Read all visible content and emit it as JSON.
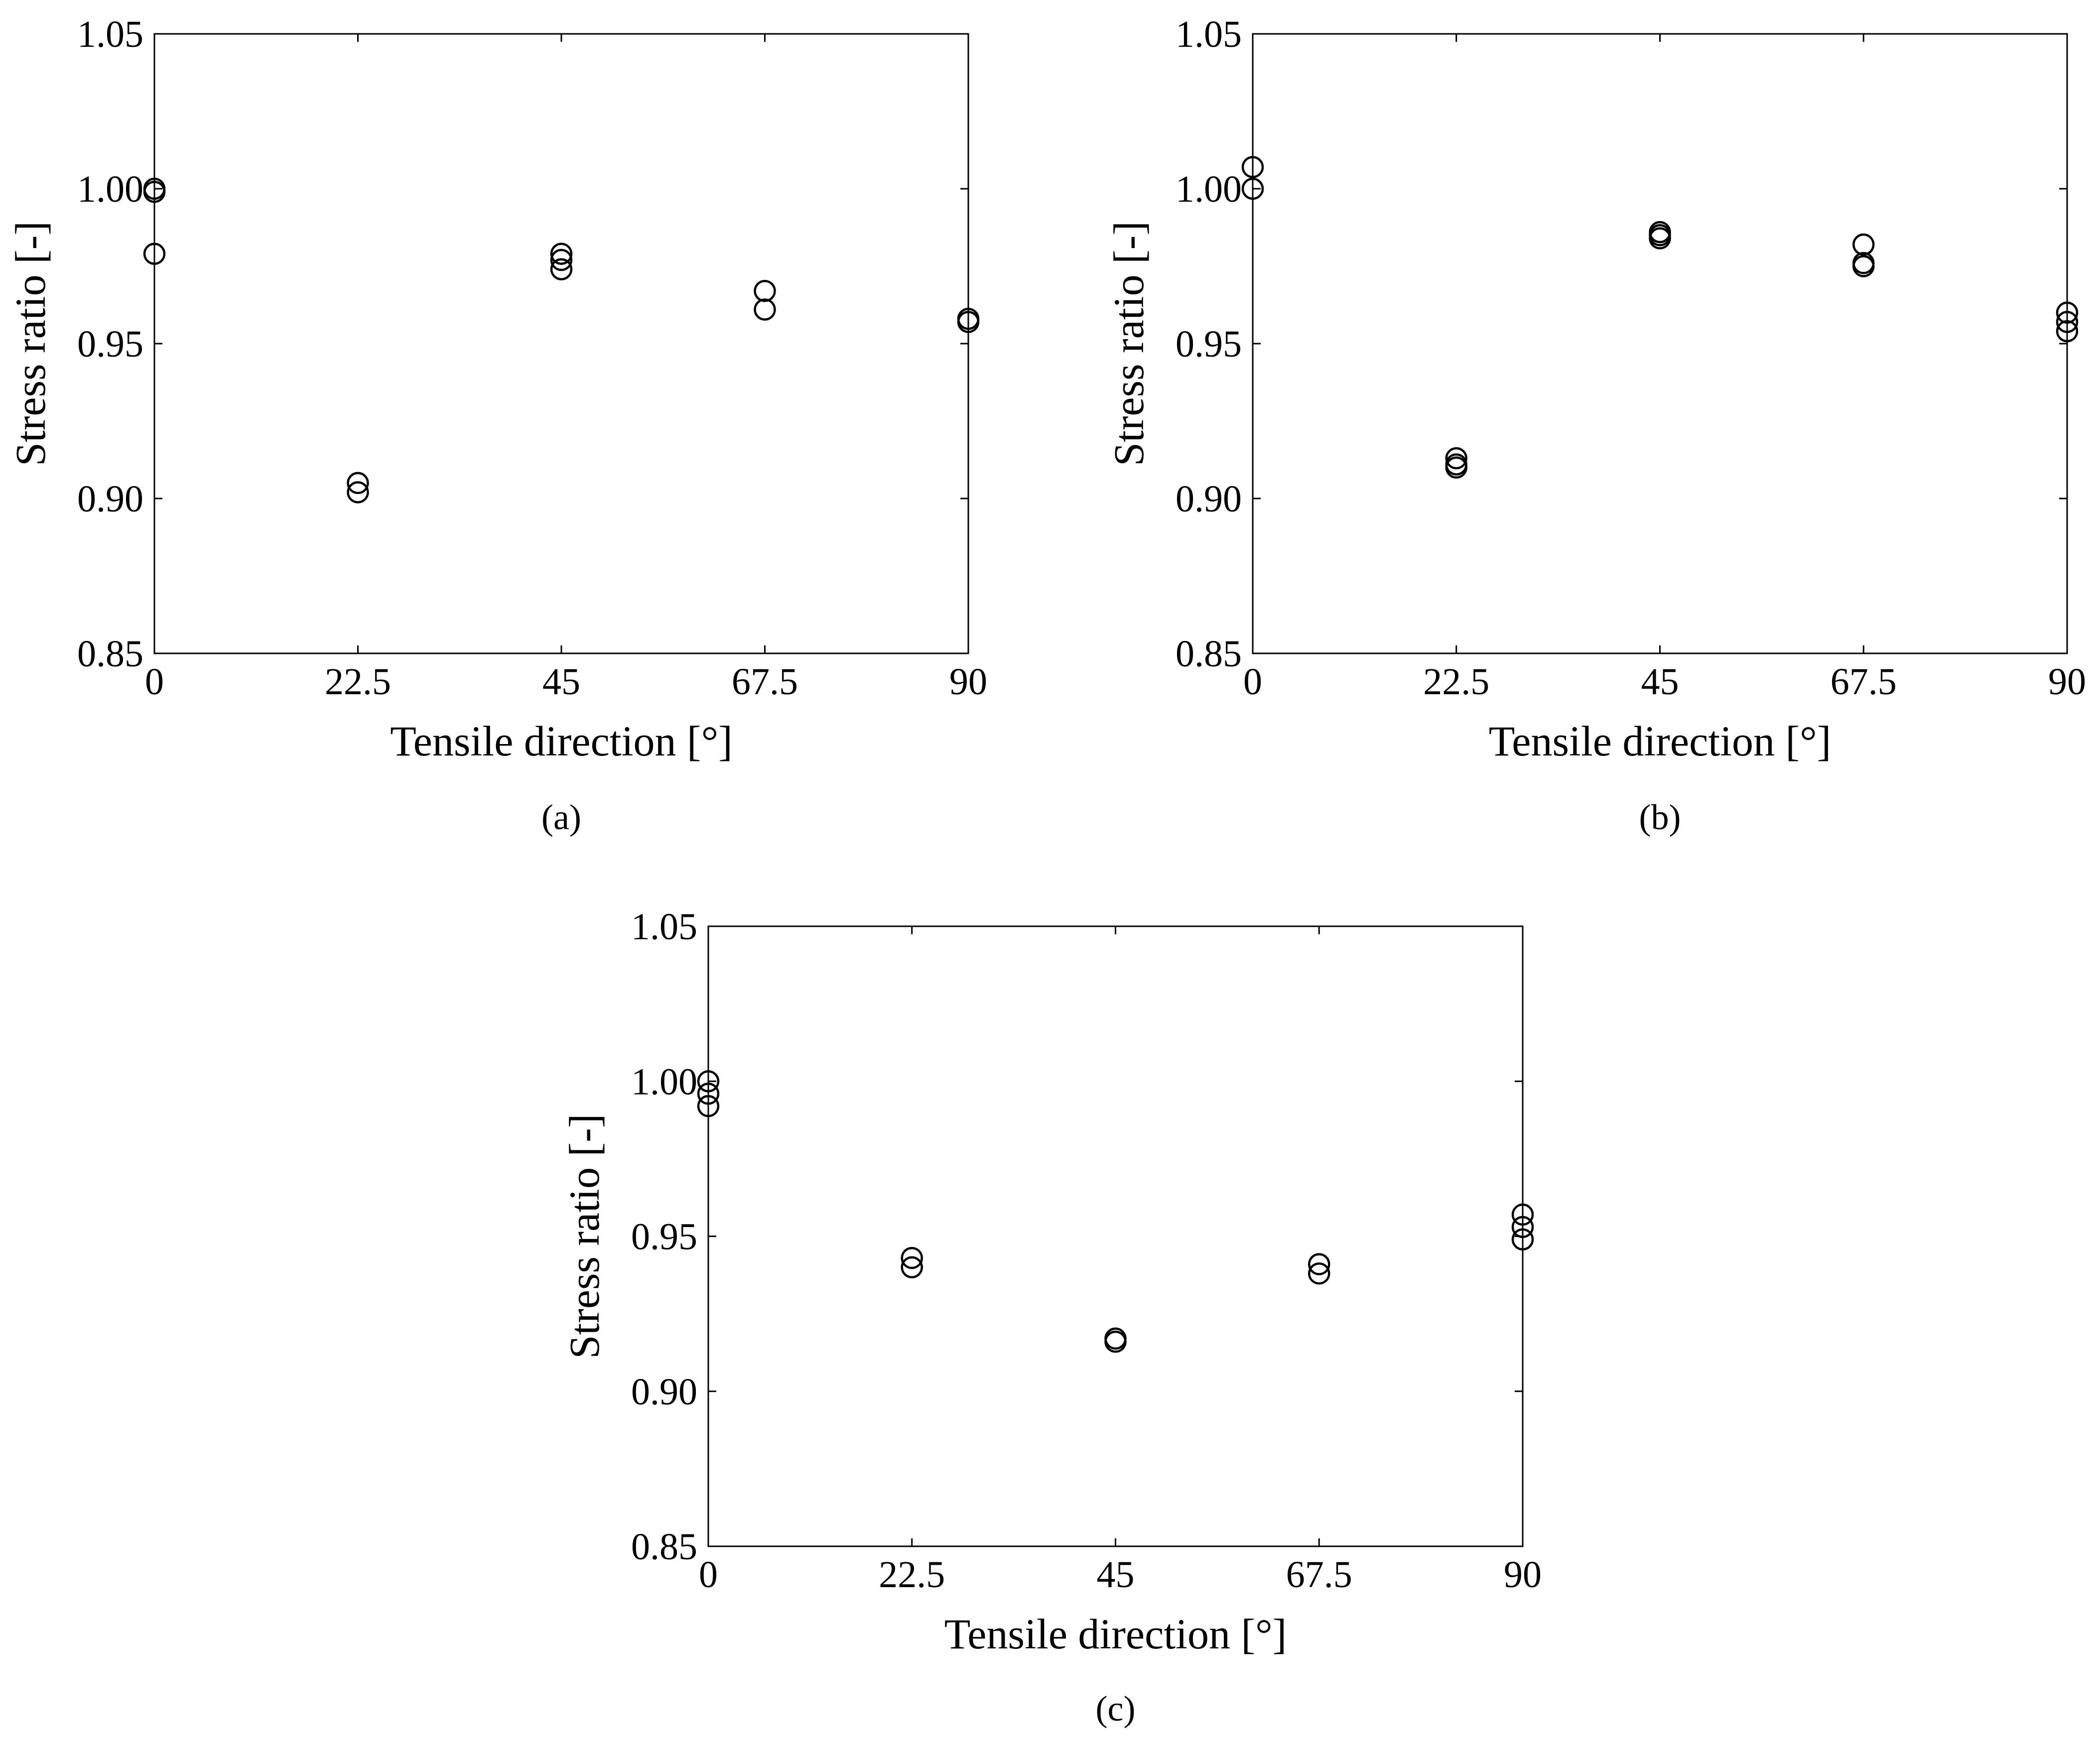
{
  "chart_data": [
    {
      "type": "scatter",
      "panel_label": "(a)",
      "xlabel": "Tensile direction [°]",
      "ylabel": "Stress ratio [-]",
      "xlim": [
        0,
        90
      ],
      "ylim": [
        0.85,
        1.05
      ],
      "xticks": [
        "0",
        "22.5",
        "45",
        "67.5",
        "90"
      ],
      "yticks": [
        "0.85",
        "0.90",
        "0.95",
        "1.00",
        "1.05"
      ],
      "marker": "open circle",
      "color": "#000000",
      "grid": false,
      "points": [
        {
          "x": 0,
          "y": 1.0
        },
        {
          "x": 0,
          "y": 0.999
        },
        {
          "x": 0,
          "y": 0.979
        },
        {
          "x": 22.5,
          "y": 0.905
        },
        {
          "x": 22.5,
          "y": 0.902
        },
        {
          "x": 45,
          "y": 0.979
        },
        {
          "x": 45,
          "y": 0.977
        },
        {
          "x": 45,
          "y": 0.974
        },
        {
          "x": 67.5,
          "y": 0.967
        },
        {
          "x": 67.5,
          "y": 0.961
        },
        {
          "x": 90,
          "y": 0.958
        },
        {
          "x": 90,
          "y": 0.957
        }
      ]
    },
    {
      "type": "scatter",
      "panel_label": "(b)",
      "xlabel": "Tensile direction [°]",
      "ylabel": "Stress ratio [-]",
      "xlim": [
        0,
        90
      ],
      "ylim": [
        0.85,
        1.05
      ],
      "xticks": [
        "0",
        "22.5",
        "45",
        "67.5",
        "90"
      ],
      "yticks": [
        "0.85",
        "0.90",
        "0.95",
        "1.00",
        "1.05"
      ],
      "marker": "open circle",
      "color": "#000000",
      "grid": false,
      "points": [
        {
          "x": 0,
          "y": 1.007
        },
        {
          "x": 0,
          "y": 1.0
        },
        {
          "x": 22.5,
          "y": 0.913
        },
        {
          "x": 22.5,
          "y": 0.911
        },
        {
          "x": 22.5,
          "y": 0.91
        },
        {
          "x": 45,
          "y": 0.986
        },
        {
          "x": 45,
          "y": 0.985
        },
        {
          "x": 45,
          "y": 0.984
        },
        {
          "x": 67.5,
          "y": 0.982
        },
        {
          "x": 67.5,
          "y": 0.976
        },
        {
          "x": 67.5,
          "y": 0.975
        },
        {
          "x": 90,
          "y": 0.96
        },
        {
          "x": 90,
          "y": 0.957
        },
        {
          "x": 90,
          "y": 0.954
        }
      ]
    },
    {
      "type": "scatter",
      "panel_label": "(c)",
      "xlabel": "Tensile direction [°]",
      "ylabel": "Stress ratio [-]",
      "xlim": [
        0,
        90
      ],
      "ylim": [
        0.85,
        1.05
      ],
      "xticks": [
        "0",
        "22.5",
        "45",
        "67.5",
        "90"
      ],
      "yticks": [
        "0.85",
        "0.90",
        "0.95",
        "1.00",
        "1.05"
      ],
      "marker": "open circle",
      "color": "#000000",
      "grid": false,
      "points": [
        {
          "x": 0,
          "y": 1.0
        },
        {
          "x": 0,
          "y": 0.996
        },
        {
          "x": 0,
          "y": 0.992
        },
        {
          "x": 22.5,
          "y": 0.943
        },
        {
          "x": 22.5,
          "y": 0.94
        },
        {
          "x": 45,
          "y": 0.917
        },
        {
          "x": 45,
          "y": 0.916
        },
        {
          "x": 67.5,
          "y": 0.941
        },
        {
          "x": 67.5,
          "y": 0.938
        },
        {
          "x": 90,
          "y": 0.957
        },
        {
          "x": 90,
          "y": 0.953
        },
        {
          "x": 90,
          "y": 0.949
        }
      ]
    }
  ]
}
